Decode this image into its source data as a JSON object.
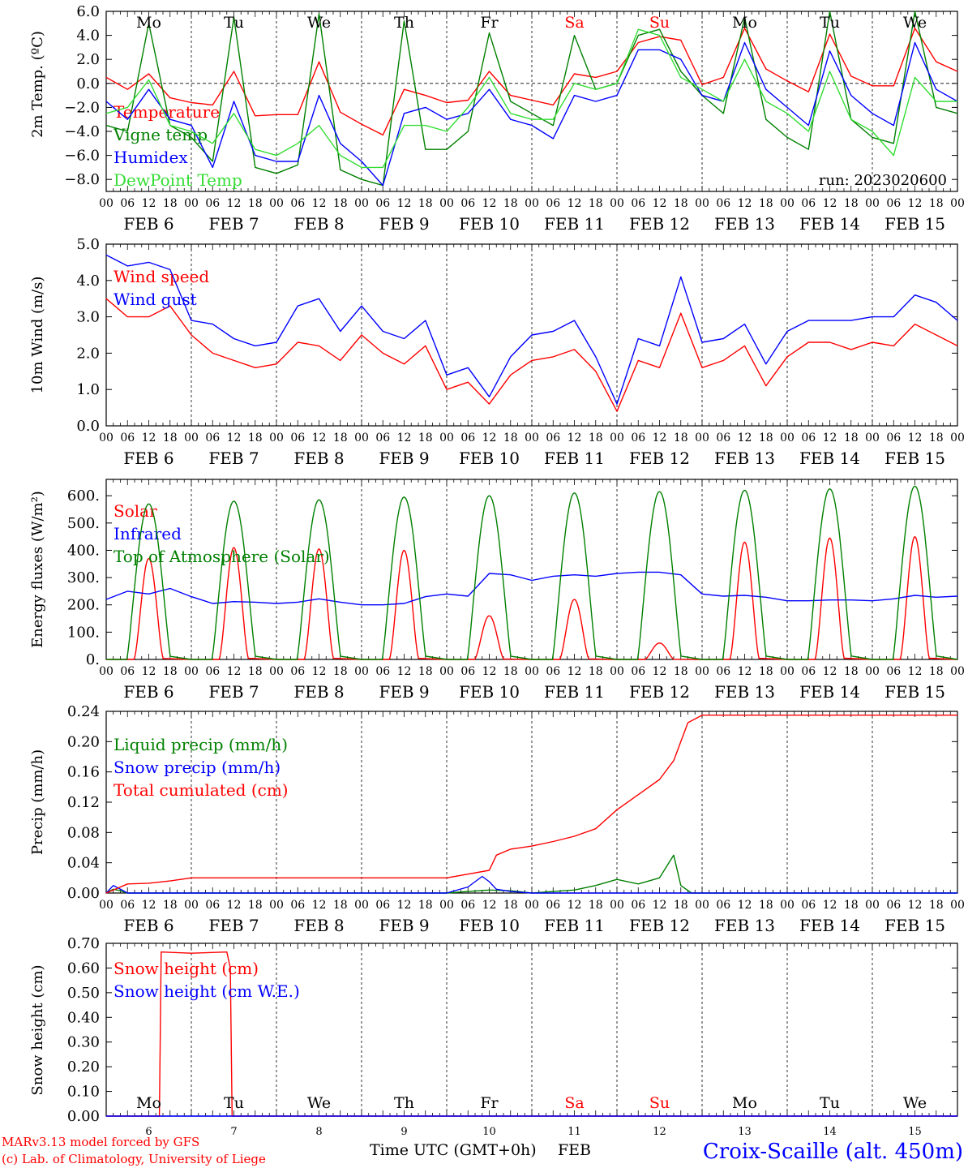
{
  "colors": {
    "red": "#ff0000",
    "green": "#008000",
    "blue": "#0000ff",
    "lightgreen": "#33dd33",
    "black": "#000000"
  },
  "footer": {
    "credit_line1": "MARv3.13 model forced by GFS",
    "credit_line2": "(c) Lab. of Climatology, University of Liege",
    "time_label": "Time UTC (GMT+0h)",
    "month": "FEB",
    "station": "Croix-Scaille (alt. 450m)"
  },
  "chart_data": [
    {
      "id": "temp",
      "type": "line",
      "ylabel": "2m Temp. (ºC)",
      "ylim": [
        -9,
        6
      ],
      "yticks": [
        "6.0",
        "4.0",
        "2.0",
        "0.0",
        "−2.0",
        "−4.0",
        "−6.0",
        "−8.0"
      ],
      "zero_line": true,
      "annotation": "run: 2023020600",
      "series": [
        {
          "name": "Temperature",
          "color": "red",
          "hours": [
            0,
            6,
            12,
            18,
            24,
            30,
            36,
            42,
            48,
            54,
            60,
            66,
            72,
            78,
            84,
            90,
            96,
            102,
            108,
            114,
            120,
            126,
            132,
            138,
            144,
            150,
            156,
            162,
            168,
            174,
            180,
            186,
            192,
            198,
            204,
            210,
            216,
            222,
            228,
            234,
            240
          ],
          "values": [
            0.5,
            -0.5,
            0.8,
            -1.2,
            -1.6,
            -1.8,
            1.0,
            -2.7,
            -2.6,
            -2.6,
            1.8,
            -2.4,
            -3.4,
            -4.3,
            -0.5,
            -1.0,
            -1.6,
            -1.4,
            1.0,
            -1.0,
            -1.4,
            -1.8,
            0.8,
            0.5,
            1.0,
            3.4,
            3.9,
            3.6,
            -0.1,
            0.5,
            4.6,
            1.2,
            0.2,
            -0.7,
            4.1,
            0.6,
            -0.2,
            -0.2,
            4.6,
            1.8,
            1.0
          ]
        },
        {
          "name": "Vigne temp",
          "color": "green",
          "hours": [
            0,
            6,
            12,
            18,
            24,
            30,
            36,
            42,
            48,
            54,
            60,
            66,
            72,
            78,
            84,
            90,
            96,
            102,
            108,
            114,
            120,
            126,
            132,
            138,
            144,
            150,
            156,
            162,
            168,
            174,
            180,
            186,
            192,
            198,
            204,
            210,
            216,
            222,
            228,
            234,
            240
          ],
          "values": [
            -3.5,
            -4.0,
            5.0,
            -3.5,
            -4.5,
            -6.5,
            5.5,
            -7.0,
            -7.5,
            -6.8,
            5.8,
            -7.2,
            -8.0,
            -8.5,
            5.2,
            -5.5,
            -5.5,
            -4.0,
            4.2,
            -1.5,
            -2.5,
            -3.5,
            4.0,
            -0.5,
            0.0,
            4.0,
            4.5,
            1.0,
            -1.0,
            -2.5,
            5.5,
            -3.0,
            -4.5,
            -5.5,
            6.0,
            -3.0,
            -4.5,
            -5.0,
            6.0,
            -2.0,
            -2.5
          ]
        },
        {
          "name": "Humidex",
          "color": "blue",
          "hours": [
            0,
            6,
            12,
            18,
            24,
            30,
            36,
            42,
            48,
            54,
            60,
            66,
            72,
            78,
            84,
            90,
            96,
            102,
            108,
            114,
            120,
            126,
            132,
            138,
            144,
            150,
            156,
            162,
            168,
            174,
            180,
            186,
            192,
            198,
            204,
            210,
            216,
            222,
            228,
            234,
            240
          ],
          "values": [
            -1.5,
            -3.0,
            -0.5,
            -3.0,
            -3.5,
            -7.0,
            -1.5,
            -6.0,
            -6.5,
            -6.5,
            -1.0,
            -5.0,
            -6.5,
            -8.5,
            -2.5,
            -2.0,
            -3.0,
            -2.5,
            -0.5,
            -3.0,
            -3.5,
            -4.6,
            -1.0,
            -1.5,
            -1.0,
            2.8,
            2.8,
            2.0,
            -1.0,
            -1.5,
            3.4,
            -0.5,
            -2.0,
            -3.5,
            2.7,
            -1.0,
            -2.5,
            -3.5,
            3.4,
            -0.5,
            -1.5
          ]
        },
        {
          "name": "DewPoint Temp",
          "color": "lightgreen",
          "hours": [
            0,
            6,
            12,
            18,
            24,
            30,
            36,
            42,
            48,
            54,
            60,
            66,
            72,
            78,
            84,
            90,
            96,
            102,
            108,
            114,
            120,
            126,
            132,
            138,
            144,
            150,
            156,
            162,
            168,
            174,
            180,
            186,
            192,
            198,
            204,
            210,
            216,
            222,
            228,
            234,
            240
          ],
          "values": [
            -2.5,
            -2.0,
            0.3,
            -3.5,
            -4.0,
            -5.0,
            -2.5,
            -5.5,
            -6.0,
            -5.0,
            -3.5,
            -6.0,
            -7.0,
            -7.0,
            -3.5,
            -3.5,
            -4.0,
            -2.0,
            0.5,
            -2.5,
            -3.0,
            -3.0,
            0.0,
            -0.5,
            0.0,
            4.5,
            4.0,
            0.5,
            -0.5,
            -1.5,
            2.0,
            -1.5,
            -2.5,
            -4.0,
            1.0,
            -3.0,
            -4.0,
            -6.0,
            0.5,
            -1.5,
            -1.5
          ]
        }
      ]
    },
    {
      "id": "wind",
      "type": "line",
      "ylabel": "10m Wind (m/s)",
      "ylim": [
        0,
        5
      ],
      "yticks": [
        "5.0",
        "4.0",
        "3.0",
        "2.0",
        "1.0",
        "0.0"
      ],
      "series": [
        {
          "name": "Wind speed",
          "color": "red",
          "hours": [
            0,
            6,
            12,
            18,
            24,
            30,
            36,
            42,
            48,
            54,
            60,
            66,
            72,
            78,
            84,
            90,
            96,
            102,
            108,
            114,
            120,
            126,
            132,
            138,
            144,
            150,
            156,
            162,
            168,
            174,
            180,
            186,
            192,
            198,
            204,
            210,
            216,
            222,
            228,
            234,
            240
          ],
          "values": [
            3.5,
            3.0,
            3.0,
            3.3,
            2.5,
            2.0,
            1.8,
            1.6,
            1.7,
            2.3,
            2.2,
            1.8,
            2.5,
            2.0,
            1.7,
            2.2,
            1.0,
            1.2,
            0.6,
            1.4,
            1.8,
            1.9,
            2.1,
            1.5,
            0.4,
            1.8,
            1.6,
            3.1,
            1.6,
            1.8,
            2.2,
            1.1,
            1.9,
            2.3,
            2.3,
            2.1,
            2.3,
            2.2,
            2.8,
            2.5,
            2.2
          ]
        },
        {
          "name": "Wind gust",
          "color": "blue",
          "hours": [
            0,
            6,
            12,
            18,
            24,
            30,
            36,
            42,
            48,
            54,
            60,
            66,
            72,
            78,
            84,
            90,
            96,
            102,
            108,
            114,
            120,
            126,
            132,
            138,
            144,
            150,
            156,
            162,
            168,
            174,
            180,
            186,
            192,
            198,
            204,
            210,
            216,
            222,
            228,
            234,
            240
          ],
          "values": [
            4.7,
            4.4,
            4.5,
            4.3,
            2.9,
            2.8,
            2.4,
            2.2,
            2.3,
            3.3,
            3.5,
            2.6,
            3.3,
            2.6,
            2.4,
            2.9,
            1.4,
            1.6,
            0.8,
            1.9,
            2.5,
            2.6,
            2.9,
            1.9,
            0.6,
            2.4,
            2.2,
            4.1,
            2.3,
            2.4,
            2.8,
            1.7,
            2.6,
            2.9,
            2.9,
            2.9,
            3.0,
            3.0,
            3.6,
            3.4,
            2.9
          ]
        }
      ]
    },
    {
      "id": "flux",
      "type": "line",
      "ylabel": "Energy fluxes (W/m²)",
      "ylim": [
        0,
        660
      ],
      "yticks": [
        "600.",
        "500.",
        "400.",
        "300.",
        "200.",
        "100.",
        "0."
      ],
      "series": [
        {
          "name": "Solar",
          "color": "red",
          "peaks": [
            370,
            410,
            405,
            400,
            160,
            220,
            60,
            430,
            445,
            450
          ]
        },
        {
          "name": "Infrared",
          "color": "blue",
          "hours": [
            0,
            6,
            12,
            18,
            24,
            30,
            36,
            42,
            48,
            54,
            60,
            66,
            72,
            78,
            84,
            90,
            96,
            102,
            108,
            114,
            120,
            126,
            132,
            138,
            144,
            150,
            156,
            162,
            168,
            174,
            180,
            186,
            192,
            198,
            204,
            210,
            216,
            222,
            228,
            234,
            240
          ],
          "values": [
            220,
            250,
            240,
            260,
            230,
            205,
            212,
            210,
            205,
            210,
            222,
            210,
            200,
            200,
            205,
            230,
            240,
            232,
            315,
            310,
            290,
            305,
            310,
            305,
            315,
            320,
            320,
            310,
            240,
            232,
            235,
            228,
            215,
            215,
            218,
            218,
            215,
            222,
            235,
            228,
            232
          ]
        },
        {
          "name": "Top of Atmosphere (Solar)",
          "color": "green",
          "peaks": [
            570,
            580,
            585,
            595,
            600,
            610,
            615,
            620,
            625,
            635
          ]
        }
      ]
    },
    {
      "id": "precip",
      "type": "line",
      "ylabel": "Precip (mm/h)",
      "ylim": [
        0,
        0.24
      ],
      "yticks": [
        "0.24",
        "0.20",
        "0.16",
        "0.12",
        "0.08",
        "0.04",
        "0.00"
      ],
      "series": [
        {
          "name": "Liquid precip (mm/h)",
          "color": "green",
          "hours": [
            0,
            2,
            4,
            6,
            8,
            96,
            102,
            108,
            114,
            120,
            126,
            132,
            138,
            144,
            150,
            156,
            160,
            162,
            165,
            168,
            240
          ],
          "values": [
            0,
            0.005,
            0.003,
            0,
            0,
            0,
            0.002,
            0.004,
            0.003,
            0,
            0.002,
            0.004,
            0.01,
            0.018,
            0.012,
            0.02,
            0.05,
            0.01,
            0,
            0,
            0
          ]
        },
        {
          "name": "Snow precip (mm/h)",
          "color": "blue",
          "hours": [
            0,
            2,
            4,
            6,
            96,
            102,
            106,
            108,
            110,
            114,
            120,
            240
          ],
          "values": [
            0,
            0.01,
            0.005,
            0,
            0,
            0.008,
            0.022,
            0.015,
            0.005,
            0.002,
            0,
            0
          ]
        },
        {
          "name": "Total cumulated (cm)",
          "color": "red",
          "hours": [
            0,
            6,
            12,
            18,
            24,
            48,
            72,
            96,
            102,
            108,
            110,
            114,
            120,
            126,
            132,
            138,
            144,
            150,
            156,
            160,
            162,
            164,
            168,
            240
          ],
          "values": [
            0,
            0.012,
            0.013,
            0.016,
            0.02,
            0.02,
            0.02,
            0.02,
            0.025,
            0.03,
            0.05,
            0.058,
            0.062,
            0.068,
            0.075,
            0.085,
            0.11,
            0.13,
            0.15,
            0.175,
            0.2,
            0.225,
            0.235,
            0.235
          ]
        }
      ]
    },
    {
      "id": "snow",
      "type": "line",
      "ylabel": "Snow height (cm)",
      "ylim": [
        0,
        0.7
      ],
      "yticks": [
        "0.70",
        "0.60",
        "0.50",
        "0.40",
        "0.30",
        "0.20",
        "0.10",
        "0.00"
      ],
      "series": [
        {
          "name": "Snow height (cm)",
          "color": "red",
          "hours": [
            0,
            15,
            15.5,
            24,
            34,
            35,
            35.5,
            240
          ],
          "values": [
            0,
            0,
            0.665,
            0.66,
            0.665,
            0.6,
            0,
            0
          ]
        },
        {
          "name": "Snow height (cm W.E.)",
          "color": "blue",
          "hours": [
            0,
            240
          ],
          "values": [
            0,
            0
          ]
        }
      ]
    }
  ],
  "x_axis": {
    "hour_ticks": [
      "00",
      "06",
      "12",
      "18"
    ],
    "date_labels": [
      "FEB  6",
      "FEB  7",
      "FEB  8",
      "FEB  9",
      "FEB 10",
      "FEB 11",
      "FEB 12",
      "FEB 13",
      "FEB 14",
      "FEB 15"
    ],
    "day_numbers": [
      "6",
      "7",
      "8",
      "9",
      "10",
      "11",
      "12",
      "13",
      "14",
      "15"
    ],
    "weekdays": [
      "Mo",
      "Tu",
      "We",
      "Th",
      "Fr",
      "Sa",
      "Su",
      "Mo",
      "Tu",
      "We"
    ],
    "weekend_color": "red",
    "weekend_days": [
      5,
      6
    ]
  }
}
